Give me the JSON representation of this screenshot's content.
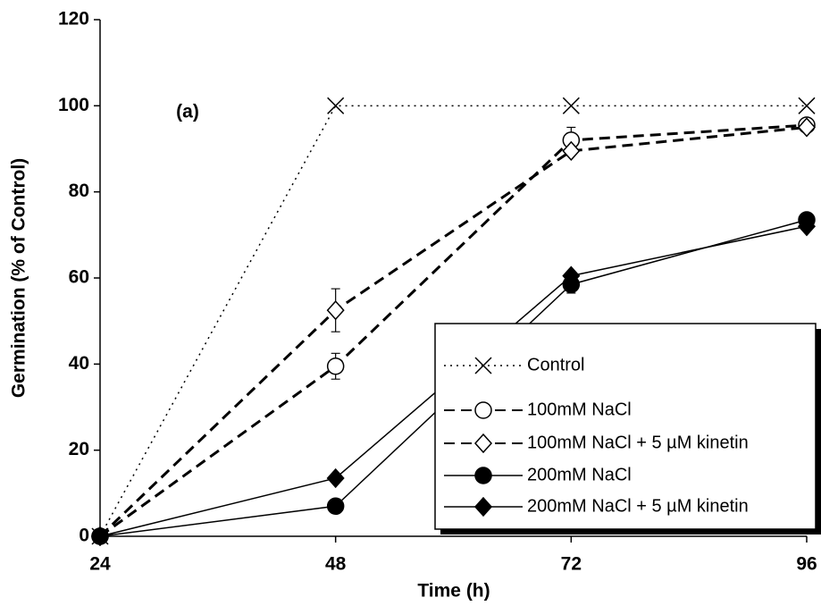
{
  "chart_data": {
    "type": "line",
    "annotation": "(a)",
    "x_label": "Time (h)",
    "y_label": "Germination (% of Control)",
    "x": [
      24,
      48,
      72,
      96
    ],
    "xlim": [
      24,
      96
    ],
    "xticks": [
      24,
      48,
      72,
      96
    ],
    "ylim": [
      0,
      120
    ],
    "yticks": [
      0,
      20,
      40,
      60,
      80,
      100,
      120
    ],
    "legend": "lower-right",
    "series": [
      {
        "name": "Control",
        "color": "#000000",
        "dash": "dotted",
        "marker": "x",
        "values": [
          0,
          100,
          100,
          100
        ],
        "errors": [
          null,
          null,
          null,
          null
        ]
      },
      {
        "name": "100mM NaCl",
        "color": "#000000",
        "dash": "dashed",
        "marker": "circle-open",
        "values": [
          0,
          39.5,
          92,
          95.5
        ],
        "errors": [
          null,
          3,
          3,
          null
        ]
      },
      {
        "name": "100mM NaCl + 5 µM kinetin",
        "color": "#000000",
        "dash": "dashed",
        "marker": "diamond-open",
        "values": [
          0,
          52.5,
          89.5,
          95
        ],
        "errors": [
          null,
          5,
          null,
          null
        ]
      },
      {
        "name": "200mM NaCl",
        "color": "#000000",
        "dash": "solid",
        "marker": "circle",
        "values": [
          0,
          7,
          58.5,
          73.5
        ],
        "errors": [
          null,
          null,
          2,
          null
        ]
      },
      {
        "name": "200mM NaCl + 5 µM kinetin",
        "color": "#000000",
        "dash": "solid",
        "marker": "diamond",
        "values": [
          0,
          13.5,
          60.5,
          72
        ],
        "errors": [
          null,
          null,
          null,
          null
        ]
      }
    ]
  }
}
